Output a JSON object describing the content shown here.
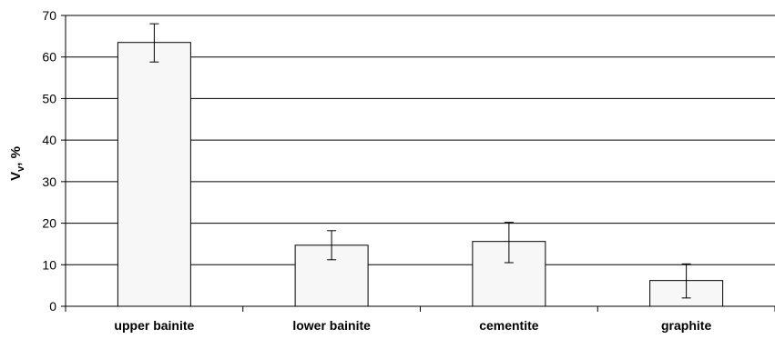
{
  "chart_data": {
    "type": "bar",
    "categories": [
      "upper bainite",
      "lower bainite",
      "cementite",
      "graphite"
    ],
    "values": [
      63.5,
      14.7,
      15.6,
      6.2
    ],
    "error_low": [
      58.8,
      11.2,
      10.5,
      2.0
    ],
    "error_high": [
      68.0,
      18.2,
      20.2,
      10.2
    ],
    "title": "",
    "xlabel": "",
    "ylabel": "V",
    "ylabel_subscript": "v",
    "ylabel_suffix": ", %",
    "ylim": [
      0,
      70
    ],
    "yticks": [
      "0",
      "10",
      "20",
      "30",
      "40",
      "50",
      "60",
      "70"
    ],
    "grid": true,
    "legend": "none",
    "colors": {
      "bar_fill": "#f7f7f7",
      "bar_stroke": "#000000",
      "grid": "#000000"
    }
  }
}
